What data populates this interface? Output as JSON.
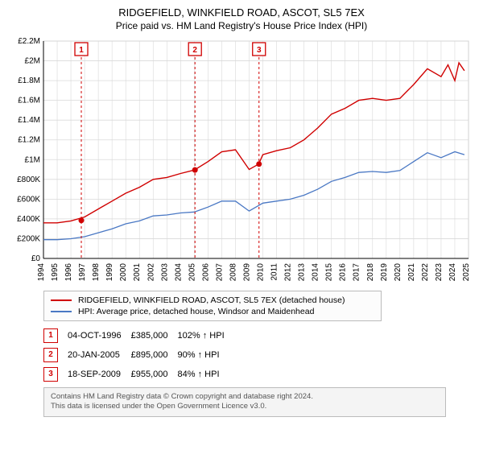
{
  "header": {
    "title": "RIDGEFIELD, WINKFIELD ROAD, ASCOT, SL5 7EX",
    "subtitle": "Price paid vs. HM Land Registry's House Price Index (HPI)"
  },
  "chart": {
    "type": "line",
    "background_color": "#ffffff",
    "grid_color": "#d9d9d9",
    "axis_color": "#000000",
    "xlim": [
      1994,
      2025
    ],
    "ylim": [
      0,
      2200000
    ],
    "ytick_step": 200000,
    "ytick_labels": [
      "£0",
      "£200K",
      "£400K",
      "£600K",
      "£800K",
      "£1M",
      "£1.2M",
      "£1.4M",
      "£1.6M",
      "£1.8M",
      "£2M",
      "£2.2M"
    ],
    "xtick_step": 1,
    "xtick_rotation": 90,
    "series": [
      {
        "name": "RIDGEFIELD, WINKFIELD ROAD, ASCOT, SL5 7EX (detached house)",
        "color": "#d00000",
        "line_width": 1.4,
        "x": [
          1994,
          1995,
          1996,
          1997,
          1998,
          1999,
          2000,
          2001,
          2002,
          2003,
          2004,
          2005,
          2006,
          2007,
          2008,
          2009,
          2009.7,
          2010,
          2011,
          2012,
          2013,
          2014,
          2015,
          2016,
          2017,
          2018,
          2019,
          2020,
          2021,
          2022,
          2023,
          2023.5,
          2024,
          2024.3,
          2024.7
        ],
        "y": [
          360000,
          360000,
          380000,
          420000,
          500000,
          580000,
          660000,
          720000,
          800000,
          820000,
          860000,
          895000,
          980000,
          1080000,
          1100000,
          900000,
          955000,
          1050000,
          1090000,
          1120000,
          1200000,
          1320000,
          1460000,
          1520000,
          1600000,
          1620000,
          1600000,
          1620000,
          1760000,
          1920000,
          1840000,
          1960000,
          1800000,
          1980000,
          1900000
        ]
      },
      {
        "name": "HPI: Average price, detached house, Windsor and Maidenhead",
        "color": "#4a78c4",
        "line_width": 1.3,
        "x": [
          1994,
          1995,
          1996,
          1997,
          1998,
          1999,
          2000,
          2001,
          2002,
          2003,
          2004,
          2005,
          2006,
          2007,
          2008,
          2009,
          2010,
          2011,
          2012,
          2013,
          2014,
          2015,
          2016,
          2017,
          2018,
          2019,
          2020,
          2021,
          2022,
          2023,
          2024,
          2024.7
        ],
        "y": [
          190000,
          190000,
          200000,
          220000,
          260000,
          300000,
          350000,
          380000,
          430000,
          440000,
          460000,
          470000,
          520000,
          580000,
          580000,
          480000,
          560000,
          580000,
          600000,
          640000,
          700000,
          780000,
          820000,
          870000,
          880000,
          870000,
          890000,
          980000,
          1070000,
          1020000,
          1080000,
          1050000
        ]
      }
    ],
    "markers": [
      {
        "n": "1",
        "x": 1996.76,
        "y": 385000,
        "label_y": 2120000
      },
      {
        "n": "2",
        "x": 2005.05,
        "y": 895000,
        "label_y": 2120000
      },
      {
        "n": "3",
        "x": 2009.72,
        "y": 955000,
        "label_y": 2120000
      }
    ],
    "marker_color": "#d00000",
    "marker_line_dash": "3,3"
  },
  "legend": {
    "items": [
      {
        "color": "#d00000",
        "label": "RIDGEFIELD, WINKFIELD ROAD, ASCOT, SL5 7EX (detached house)"
      },
      {
        "color": "#4a78c4",
        "label": "HPI: Average price, detached house, Windsor and Maidenhead"
      }
    ]
  },
  "marker_table": {
    "rows": [
      {
        "n": "1",
        "date": "04-OCT-1996",
        "price": "£385,000",
        "rel": "102% ↑ HPI"
      },
      {
        "n": "2",
        "date": "20-JAN-2005",
        "price": "£895,000",
        "rel": "90% ↑ HPI"
      },
      {
        "n": "3",
        "date": "18-SEP-2009",
        "price": "£955,000",
        "rel": "84% ↑ HPI"
      }
    ]
  },
  "footer": {
    "line1": "Contains HM Land Registry data © Crown copyright and database right 2024.",
    "line2": "This data is licensed under the Open Government Licence v3.0."
  }
}
